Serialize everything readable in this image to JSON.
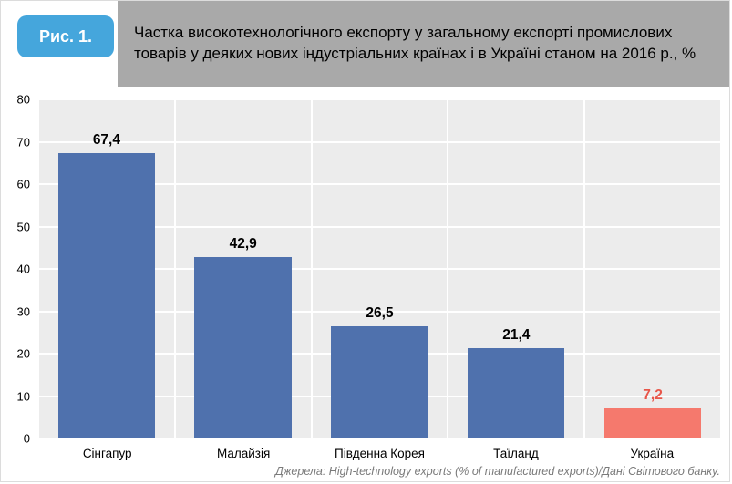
{
  "header": {
    "figure_label": "Рис. 1.",
    "title": "Частка високотехнологічного експорту у загальному експорті промислових товарів у деяких нових індустріальних країнах і в Україні станом на 2016 р., %"
  },
  "footer": {
    "source": "Джерела: High-technology exports (% of manufactured exports)/Дані Світового банку."
  },
  "colors": {
    "badge_bg": "#45a6dc",
    "badge_text": "#ffffff",
    "header_bg": "#a9a9a9",
    "title_text": "#000000",
    "plot_bg": "#ececec",
    "gridline": "#ffffff",
    "bar": "#4f71ad",
    "bar_highlight": "#f5796d",
    "value_label": "#000000",
    "value_label_highlight": "#e8564a",
    "source_text": "#7a7a7a"
  },
  "chart_data": {
    "type": "bar",
    "title": "Частка високотехнологічного експорту у загальному експорті промислових товарів у деяких нових індустріальних країнах і в Україні станом на 2016 р., %",
    "categories": [
      "Сінгапур",
      "Малайзія",
      "Південна Корея",
      "Таїланд",
      "Україна"
    ],
    "values": [
      67.4,
      42.9,
      26.5,
      21.4,
      7.2
    ],
    "value_labels": [
      "67,4",
      "42,9",
      "26,5",
      "21,4",
      "7,2"
    ],
    "highlight_index": 4,
    "xlabel": "",
    "ylabel": "",
    "ylim": [
      0,
      80
    ],
    "ytick_step": 10,
    "grid": true,
    "legend": "none"
  }
}
